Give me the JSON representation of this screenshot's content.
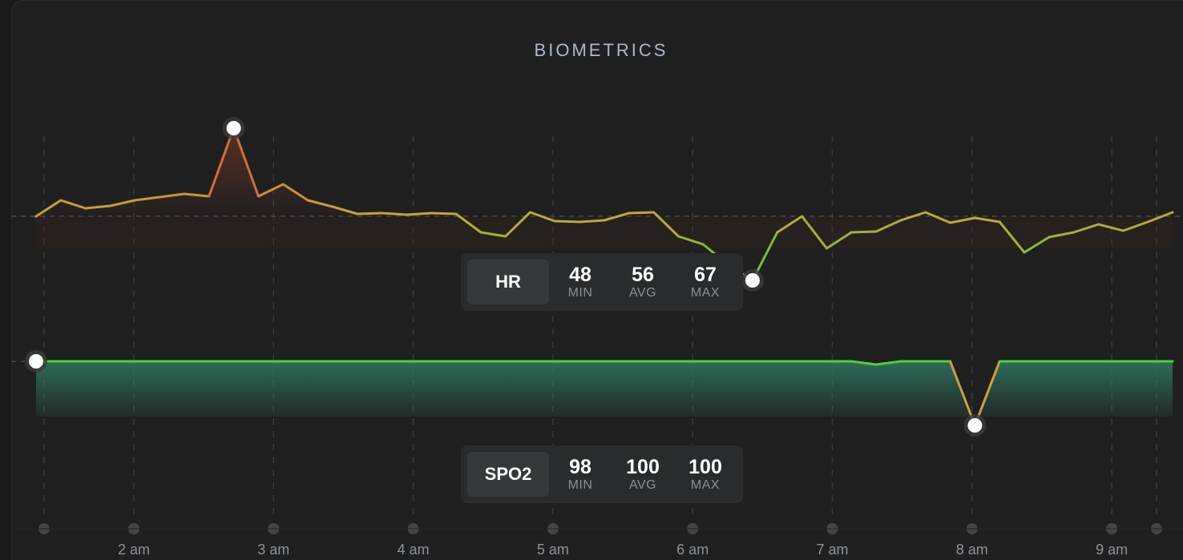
{
  "title": "BIOMETRICS",
  "hr_box": {
    "label": "HR",
    "stats": [
      {
        "value": "48",
        "name": "MIN"
      },
      {
        "value": "56",
        "name": "AVG"
      },
      {
        "value": "67",
        "name": "MAX"
      }
    ]
  },
  "spo2_box": {
    "label": "SPO2",
    "stats": [
      {
        "value": "98",
        "name": "MIN"
      },
      {
        "value": "100",
        "name": "AVG"
      },
      {
        "value": "100",
        "name": "MAX"
      }
    ]
  },
  "colors": {
    "background": "#202020",
    "good": "#4cd235",
    "warn": "#c9a23a",
    "bad": "#d75a32",
    "spo2_fill": "#2f7a63"
  },
  "chart_data": [
    {
      "type": "line",
      "series": [
        {
          "name": "HR",
          "values": [
            56,
            58,
            57,
            57.3,
            58,
            58.4,
            58.8,
            58.5,
            67,
            58.5,
            60,
            58,
            57.2,
            56.3,
            56.4,
            56.2,
            56.4,
            56.3,
            54,
            53.5,
            56.5,
            55.4,
            55.3,
            55.5,
            56.4,
            56.5,
            53.5,
            52.5,
            50,
            48,
            54,
            56,
            52,
            54,
            54.1,
            55.5,
            56.5,
            55.2,
            55.8,
            55.3,
            51.5,
            53.4,
            54,
            55,
            54.2,
            55.3,
            56.5
          ]
        }
      ],
      "x_range": [
        "1:30 am",
        "9:45 am"
      ],
      "y_range": [
        44,
        71
      ],
      "reference_value": 56,
      "min_value": 48,
      "max_value": 67
    },
    {
      "type": "area",
      "series": [
        {
          "name": "SPO2",
          "points": [
            [
              0,
              100
            ],
            [
              33,
              100
            ],
            [
              34,
              99.9
            ],
            [
              35,
              100
            ],
            [
              36,
              100
            ],
            [
              37,
              100
            ],
            [
              38,
              98
            ],
            [
              39,
              100
            ],
            [
              46,
              100
            ]
          ]
        }
      ],
      "x_range": [
        "1:30 am",
        "9:45 am"
      ],
      "y_range": [
        97.5,
        100
      ],
      "reference_value": 100,
      "min_value": 98,
      "max_value": 100
    }
  ],
  "x_axis": {
    "ticks": [
      "2 am",
      "3 am",
      "4 am",
      "5 am",
      "6 am",
      "7 am",
      "8 am",
      "9 am"
    ]
  }
}
